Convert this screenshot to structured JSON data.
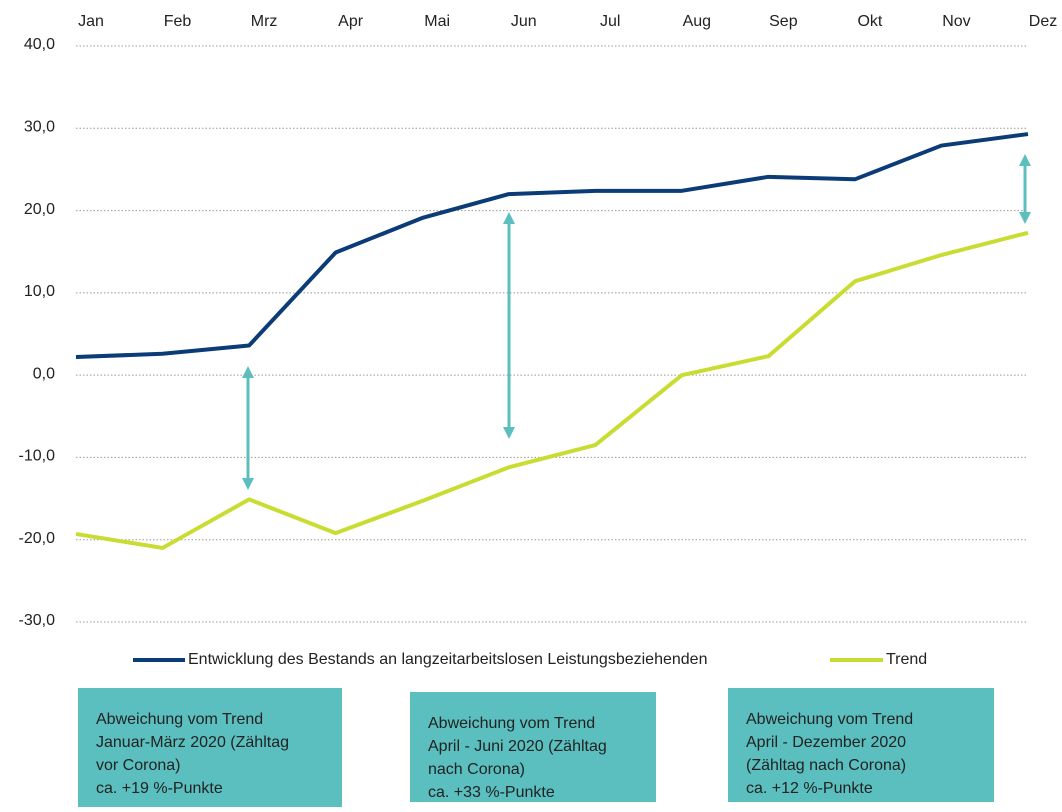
{
  "chart_data": {
    "type": "line",
    "categories": [
      "Jan",
      "Feb",
      "Mrz",
      "Apr",
      "Mai",
      "Jun",
      "Jul",
      "Aug",
      "Sep",
      "Okt",
      "Nov",
      "Dez"
    ],
    "series": [
      {
        "name": "Entwicklung des Bestands an langzeitarbeitslosen Leistungsbeziehenden",
        "color": "#0b3c78",
        "values": [
          2.2,
          2.6,
          3.6,
          14.9,
          19.1,
          22.0,
          22.4,
          22.4,
          24.1,
          23.8,
          27.9,
          29.3
        ]
      },
      {
        "name": "Trend",
        "color": "#c9dc32",
        "values": [
          -19.3,
          -21.0,
          -15.1,
          -19.2,
          -15.3,
          -11.2,
          -8.5,
          0.0,
          2.3,
          11.4,
          14.6,
          17.3
        ]
      }
    ],
    "ylim": [
      -30,
      40
    ],
    "yticks": [
      {
        "value": -30,
        "label": "-30,0"
      },
      {
        "value": -20,
        "label": "-20,0"
      },
      {
        "value": -10,
        "label": "-10,0"
      },
      {
        "value": 0,
        "label": "0,0"
      },
      {
        "value": 10,
        "label": "10,0"
      },
      {
        "value": 20,
        "label": "20,0"
      },
      {
        "value": 30,
        "label": "30,0"
      },
      {
        "value": 40,
        "label": "40,0"
      }
    ],
    "grid": true,
    "legend": "bottom",
    "annotations": [
      {
        "lines": [
          "Abweichung vom Trend",
          "Januar-März 2020 (Zähltag",
          "vor Corona)",
          "ca. +19 %-Punkte"
        ]
      },
      {
        "lines": [
          "Abweichung vom Trend",
          "April - Juni 2020 (Zähltag",
          "nach Corona)",
          "ca. +33 %-Punkte"
        ]
      },
      {
        "lines": [
          "Abweichung vom Trend",
          "April - Dezember 2020",
          "(Zähltag nach Corona)",
          "ca. +12 %-Punkte"
        ]
      }
    ]
  }
}
